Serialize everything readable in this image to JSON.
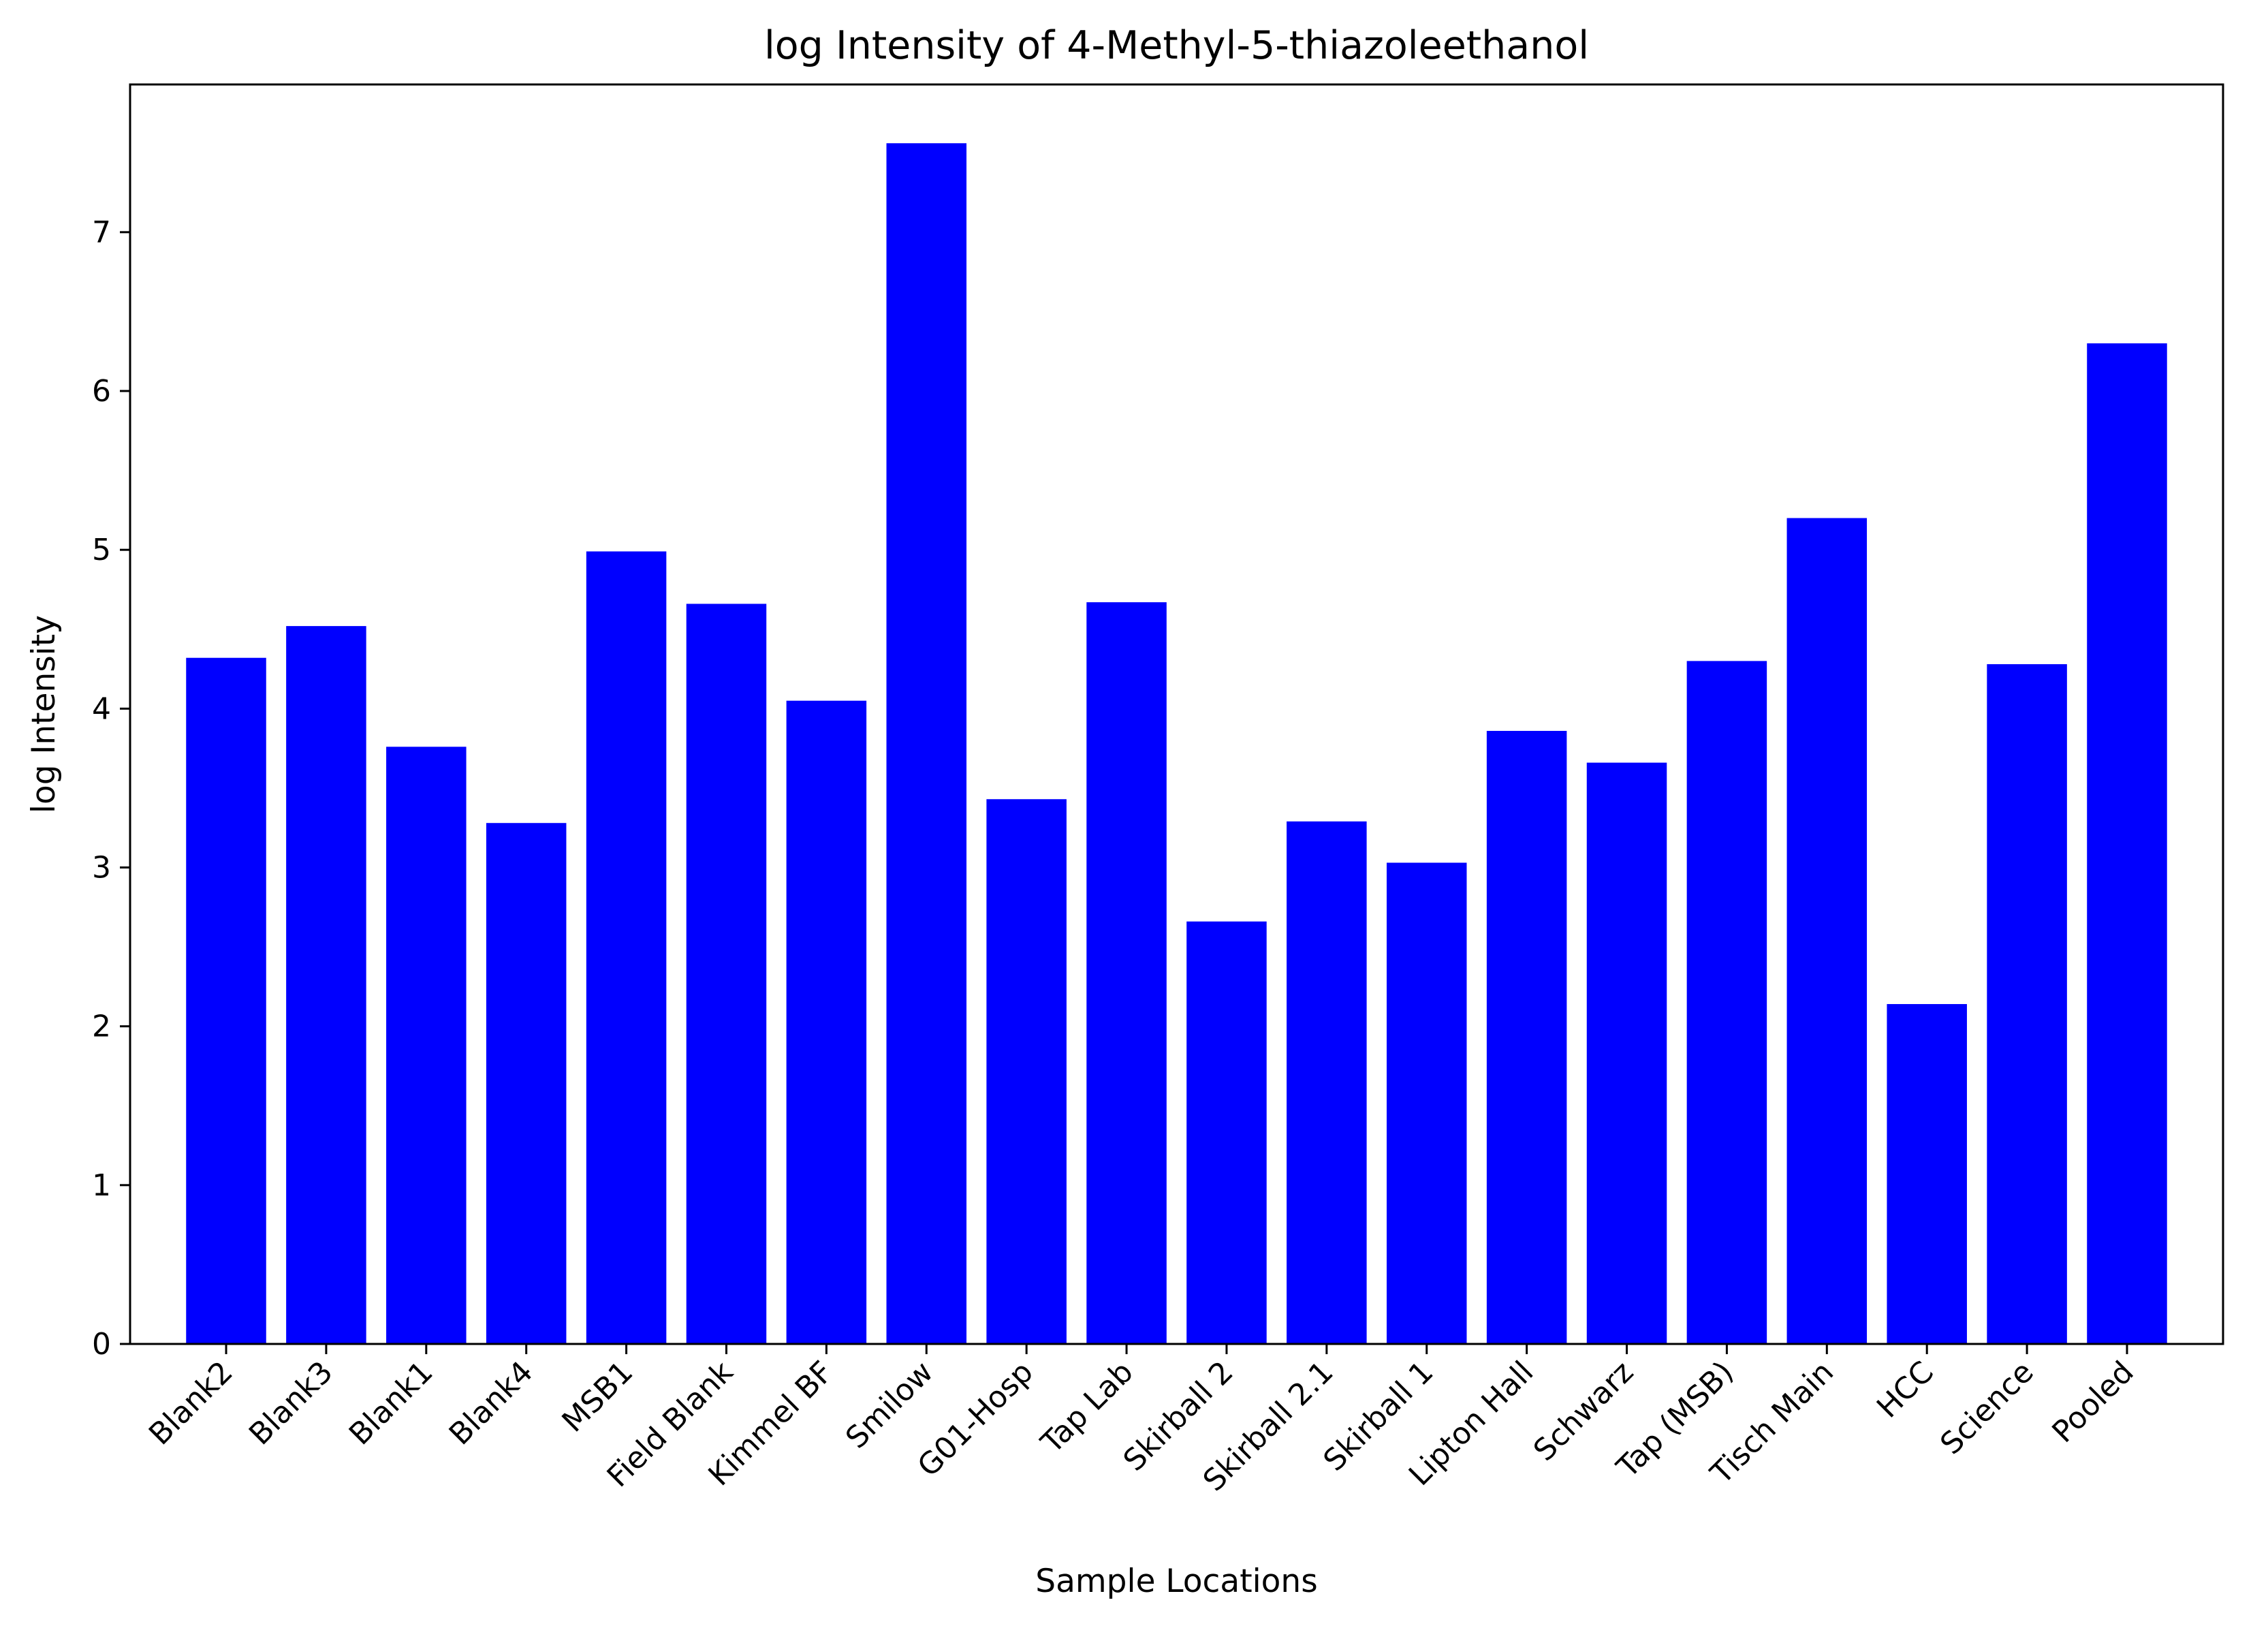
{
  "chart_data": {
    "type": "bar",
    "title": "log Intensity of 4-Methyl-5-thiazoleethanol",
    "xlabel": "Sample Locations",
    "ylabel": "log Intensity",
    "categories": [
      "Blank2",
      "Blank3",
      "Blank1",
      "Blank4",
      "MSB1",
      "Field Blank",
      "Kimmel BF",
      "Smilow",
      "G01-Hosp",
      "Tap Lab",
      "Skirball 2",
      "Skirball 2.1",
      "Skirball 1",
      "Lipton Hall",
      "Schwarz",
      "Tap (MSB)",
      "Tisch Main",
      "HCC",
      "Science",
      "Pooled"
    ],
    "values": [
      4.32,
      4.52,
      3.76,
      3.28,
      4.99,
      4.66,
      4.05,
      7.56,
      3.43,
      4.67,
      2.66,
      3.29,
      3.03,
      3.86,
      3.66,
      4.3,
      5.2,
      2.14,
      4.28,
      6.3
    ],
    "ylim": [
      0,
      7.93
    ],
    "yticks": [
      0,
      1,
      2,
      3,
      4,
      5,
      6,
      7
    ],
    "tick_label_rotation": 45,
    "grid": false,
    "legend": "none",
    "bar_color": "#0000ff"
  }
}
